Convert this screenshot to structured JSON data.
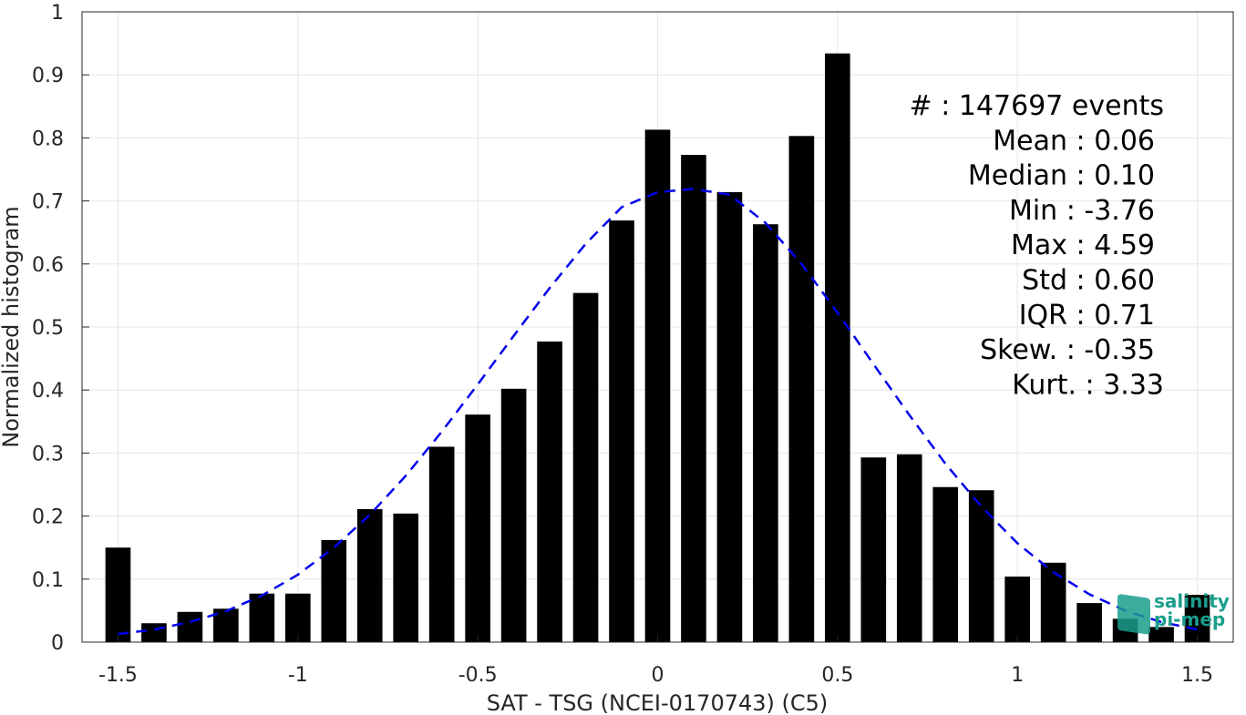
{
  "chart_data": {
    "type": "bar",
    "xlabel": "SAT - TSG (NCEI-0170743) (C5)",
    "ylabel": "Normalized histogram",
    "xlim": [
      -1.6,
      1.6
    ],
    "ylim": [
      0,
      1
    ],
    "x_ticks": [
      "-1.5",
      "-1",
      "-0.5",
      "0",
      "0.5",
      "1",
      "1.5"
    ],
    "y_ticks": [
      "0",
      "0.1",
      "0.2",
      "0.3",
      "0.4",
      "0.5",
      "0.6",
      "0.7",
      "0.8",
      "0.9",
      "1"
    ],
    "grid": true,
    "bar_centers": [
      -1.5,
      -1.4,
      -1.3,
      -1.2,
      -1.1,
      -1.0,
      -0.9,
      -0.8,
      -0.7,
      -0.6,
      -0.5,
      -0.4,
      -0.3,
      -0.2,
      -0.1,
      0.0,
      0.1,
      0.2,
      0.3,
      0.4,
      0.5,
      0.6,
      0.7,
      0.8,
      0.9,
      1.0,
      1.1,
      1.2,
      1.3,
      1.4,
      1.5
    ],
    "values": [
      0.15,
      0.03,
      0.048,
      0.053,
      0.077,
      0.077,
      0.162,
      0.211,
      0.204,
      0.31,
      0.361,
      0.402,
      0.477,
      0.554,
      0.669,
      0.813,
      0.773,
      0.714,
      0.663,
      0.803,
      0.934,
      0.293,
      0.298,
      0.246,
      0.241,
      0.104,
      0.126,
      0.062,
      0.037,
      0.024,
      0.075
    ],
    "bar_color": "#000000",
    "fit_curve": {
      "style": "dashed",
      "color": "#0000ee",
      "x": [
        -1.5,
        -1.4,
        -1.3,
        -1.2,
        -1.1,
        -1.0,
        -0.9,
        -0.8,
        -0.7,
        -0.6,
        -0.5,
        -0.4,
        -0.3,
        -0.2,
        -0.1,
        0.0,
        0.1,
        0.2,
        0.3,
        0.4,
        0.5,
        0.6,
        0.7,
        0.8,
        0.9,
        1.0,
        1.1,
        1.2,
        1.3,
        1.4,
        1.5
      ],
      "y": [
        0.013,
        0.02,
        0.032,
        0.049,
        0.074,
        0.107,
        0.15,
        0.202,
        0.264,
        0.334,
        0.409,
        0.486,
        0.562,
        0.632,
        0.69,
        0.714,
        0.719,
        0.71,
        0.665,
        0.6,
        0.523,
        0.441,
        0.36,
        0.283,
        0.215,
        0.157,
        0.111,
        0.076,
        0.05,
        0.032,
        0.02
      ]
    },
    "stats": [
      "#  : 147697 events",
      "Mean : 0.06",
      "Median : 0.10",
      "Min : -3.76",
      "Max : 4.59",
      "Std : 0.60",
      "IQR : 0.71",
      "Skew. : -0.35",
      "Kurt. : 3.33"
    ]
  },
  "logo": {
    "line1": "salinity",
    "line2": "pi-mep",
    "color": "#1a9e8c"
  }
}
